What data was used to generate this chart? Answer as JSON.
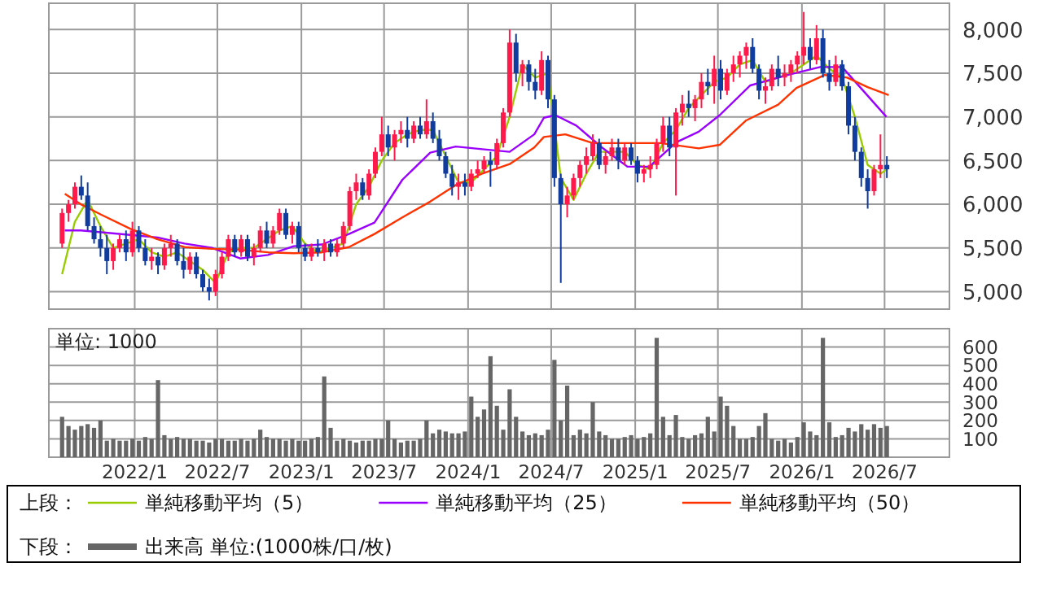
{
  "chart_data": [
    {
      "type": "candlestick",
      "xlim": [
        "2021-06-27",
        "2026-11-20"
      ],
      "xticks": [
        {
          "value": "2022-01-01",
          "label": null
        },
        {
          "value": "2022-07-01",
          "label": null
        },
        {
          "value": "2023-01-01",
          "label": null
        },
        {
          "value": "2023-07-01",
          "label": null
        },
        {
          "value": "2024-01-01",
          "label": null
        },
        {
          "value": "2024-07-01",
          "label": null
        },
        {
          "value": "2025-01-01",
          "label": null
        },
        {
          "value": "2025-07-01",
          "label": null
        },
        {
          "value": "2026-01-01",
          "label": null
        },
        {
          "value": "2026-07-01",
          "label": null
        }
      ],
      "ylim": [
        4800,
        8300
      ],
      "yticks": [
        {
          "value": 5000,
          "label": "5,000"
        },
        {
          "value": 5500,
          "label": "5,500"
        },
        {
          "value": 6000,
          "label": "6,000"
        },
        {
          "value": 6500,
          "label": "6,500"
        },
        {
          "value": 7000,
          "label": "7,000"
        },
        {
          "value": 7500,
          "label": "7,500"
        },
        {
          "value": 8000,
          "label": "8,000"
        }
      ],
      "grid": true,
      "tick_labels": "y",
      "legend": "bottom",
      "legend_title": "上段：",
      "x": [
        "2021-07-26",
        "2021-08-09",
        "2021-08-23",
        "2021-09-06",
        "2021-09-20",
        "2021-10-04",
        "2021-10-18",
        "2021-11-01",
        "2021-11-15",
        "2021-11-29",
        "2021-12-13",
        "2021-12-27",
        "2022-01-10",
        "2022-01-24",
        "2022-02-07",
        "2022-02-21",
        "2022-03-07",
        "2022-03-21",
        "2022-04-04",
        "2022-04-18",
        "2022-05-02",
        "2022-05-16",
        "2022-05-30",
        "2022-06-13",
        "2022-06-27",
        "2022-07-11",
        "2022-07-25",
        "2022-08-08",
        "2022-08-22",
        "2022-09-05",
        "2022-09-19",
        "2022-10-03",
        "2022-10-17",
        "2022-10-31",
        "2022-11-14",
        "2022-11-28",
        "2022-12-12",
        "2022-12-26",
        "2023-01-09",
        "2023-01-23",
        "2023-02-06",
        "2023-02-20",
        "2023-03-06",
        "2023-03-20",
        "2023-04-03",
        "2023-04-17",
        "2023-05-01",
        "2023-05-15",
        "2023-05-29",
        "2023-06-12",
        "2023-06-26",
        "2023-07-10",
        "2023-07-24",
        "2023-08-07",
        "2023-08-21",
        "2023-09-04",
        "2023-09-18",
        "2023-10-02",
        "2023-10-16",
        "2023-10-30",
        "2023-11-13",
        "2023-11-27",
        "2023-12-11",
        "2023-12-25",
        "2024-01-08",
        "2024-01-22",
        "2024-02-05",
        "2024-02-19",
        "2024-03-04",
        "2024-03-18",
        "2024-04-01",
        "2024-04-15",
        "2024-04-29",
        "2024-05-13",
        "2024-05-27",
        "2024-06-10",
        "2024-06-24",
        "2024-07-08",
        "2024-07-22",
        "2024-08-05",
        "2024-08-19",
        "2024-09-02",
        "2024-09-16",
        "2024-09-30",
        "2024-10-14",
        "2024-10-28",
        "2024-11-11",
        "2024-11-25",
        "2024-12-09",
        "2024-12-23",
        "2025-01-06",
        "2025-01-20",
        "2025-02-03",
        "2025-02-17",
        "2025-03-03",
        "2025-03-17",
        "2025-03-31",
        "2025-04-14",
        "2025-04-28",
        "2025-05-12",
        "2025-05-26",
        "2025-06-09",
        "2025-06-23",
        "2025-07-07",
        "2025-07-21",
        "2025-08-04",
        "2025-08-18",
        "2025-09-01",
        "2025-09-15",
        "2025-09-29",
        "2025-10-13",
        "2025-10-27",
        "2025-11-10",
        "2025-11-24",
        "2025-12-08",
        "2025-12-22",
        "2026-01-05",
        "2026-01-19",
        "2026-02-02",
        "2026-02-16",
        "2026-03-02",
        "2026-03-16",
        "2026-03-30",
        "2026-04-13",
        "2026-04-27",
        "2026-05-11",
        "2026-05-25",
        "2026-06-08",
        "2026-06-22",
        "2026-07-06"
      ],
      "ohlc": [
        [
          5550,
          5950,
          5500,
          5900
        ],
        [
          5900,
          6050,
          5800,
          6000
        ],
        [
          6000,
          6250,
          5950,
          6200
        ],
        [
          6200,
          6330,
          6050,
          6100
        ],
        [
          6100,
          6250,
          5700,
          5750
        ],
        [
          5750,
          5850,
          5550,
          5600
        ],
        [
          5600,
          5750,
          5400,
          5500
        ],
        [
          5500,
          5650,
          5200,
          5350
        ],
        [
          5350,
          5550,
          5250,
          5500
        ],
        [
          5500,
          5650,
          5450,
          5600
        ],
        [
          5600,
          5700,
          5350,
          5450
        ],
        [
          5450,
          5800,
          5400,
          5700
        ],
        [
          5700,
          5750,
          5450,
          5500
        ],
        [
          5500,
          5600,
          5300,
          5350
        ],
        [
          5350,
          5500,
          5250,
          5400
        ],
        [
          5400,
          5450,
          5200,
          5300
        ],
        [
          5300,
          5550,
          5250,
          5500
        ],
        [
          5500,
          5650,
          5400,
          5550
        ],
        [
          5550,
          5600,
          5300,
          5350
        ],
        [
          5350,
          5500,
          5150,
          5250
        ],
        [
          5250,
          5450,
          5200,
          5400
        ],
        [
          5400,
          5450,
          5150,
          5200
        ],
        [
          5200,
          5250,
          5000,
          5050
        ],
        [
          5050,
          5150,
          4900,
          5000
        ],
        [
          5000,
          5250,
          4950,
          5200
        ],
        [
          5200,
          5450,
          5150,
          5400
        ],
        [
          5400,
          5650,
          5350,
          5600
        ],
        [
          5600,
          5650,
          5400,
          5450
        ],
        [
          5450,
          5650,
          5400,
          5600
        ],
        [
          5600,
          5650,
          5350,
          5400
        ],
        [
          5400,
          5550,
          5300,
          5500
        ],
        [
          5500,
          5750,
          5450,
          5700
        ],
        [
          5700,
          5800,
          5500,
          5550
        ],
        [
          5550,
          5750,
          5500,
          5700
        ],
        [
          5700,
          5950,
          5650,
          5900
        ],
        [
          5900,
          5950,
          5600,
          5650
        ],
        [
          5650,
          5800,
          5550,
          5750
        ],
        [
          5750,
          5800,
          5450,
          5500
        ],
        [
          5500,
          5550,
          5350,
          5400
        ],
        [
          5400,
          5550,
          5350,
          5500
        ],
        [
          5500,
          5600,
          5400,
          5450
        ],
        [
          5450,
          5600,
          5350,
          5550
        ],
        [
          5550,
          5600,
          5400,
          5450
        ],
        [
          5450,
          5600,
          5400,
          5550
        ],
        [
          5550,
          5800,
          5500,
          5750
        ],
        [
          5750,
          6200,
          5700,
          6150
        ],
        [
          6150,
          6350,
          6050,
          6250
        ],
        [
          6250,
          6300,
          6050,
          6100
        ],
        [
          6100,
          6400,
          6050,
          6350
        ],
        [
          6350,
          6650,
          6300,
          6600
        ],
        [
          6600,
          7000,
          6550,
          6800
        ],
        [
          6800,
          6900,
          6550,
          6650
        ],
        [
          6650,
          6850,
          6500,
          6800
        ],
        [
          6800,
          6950,
          6700,
          6850
        ],
        [
          6850,
          7000,
          6650,
          6750
        ],
        [
          6750,
          6950,
          6700,
          6900
        ],
        [
          6900,
          7000,
          6750,
          6800
        ],
        [
          6800,
          7200,
          6750,
          6950
        ],
        [
          6950,
          7050,
          6700,
          6750
        ],
        [
          6750,
          6850,
          6500,
          6550
        ],
        [
          6550,
          6600,
          6300,
          6350
        ],
        [
          6350,
          6450,
          6100,
          6200
        ],
        [
          6200,
          6350,
          6050,
          6250
        ],
        [
          6250,
          6350,
          6100,
          6200
        ],
        [
          6200,
          6400,
          6150,
          6350
        ],
        [
          6350,
          6500,
          6300,
          6400
        ],
        [
          6400,
          6550,
          6350,
          6500
        ],
        [
          6500,
          6600,
          6200,
          6450
        ],
        [
          6450,
          6750,
          6400,
          6700
        ],
        [
          6700,
          7100,
          6650,
          7050
        ],
        [
          7050,
          8000,
          7000,
          7850
        ],
        [
          7850,
          7950,
          7400,
          7500
        ],
        [
          7500,
          7650,
          7350,
          7600
        ],
        [
          7600,
          7650,
          7300,
          7400
        ],
        [
          7400,
          7550,
          7200,
          7300
        ],
        [
          7300,
          7750,
          7250,
          7650
        ],
        [
          7650,
          7700,
          7100,
          7200
        ],
        [
          7200,
          7250,
          6200,
          6300
        ],
        [
          6300,
          6350,
          5100,
          6000
        ],
        [
          6000,
          6200,
          5850,
          6100
        ],
        [
          6100,
          6350,
          6050,
          6300
        ],
        [
          6300,
          6500,
          6200,
          6450
        ],
        [
          6450,
          6650,
          6350,
          6550
        ],
        [
          6550,
          6800,
          6500,
          6700
        ],
        [
          6700,
          6750,
          6400,
          6450
        ],
        [
          6450,
          6600,
          6350,
          6550
        ],
        [
          6550,
          6750,
          6500,
          6650
        ],
        [
          6650,
          6750,
          6400,
          6500
        ],
        [
          6500,
          6700,
          6450,
          6650
        ],
        [
          6650,
          6700,
          6450,
          6500
        ],
        [
          6500,
          6550,
          6250,
          6350
        ],
        [
          6350,
          6450,
          6250,
          6400
        ],
        [
          6400,
          6550,
          6300,
          6450
        ],
        [
          6450,
          6750,
          6400,
          6700
        ],
        [
          6700,
          7000,
          6600,
          6900
        ],
        [
          6900,
          7000,
          6550,
          6650
        ],
        [
          6650,
          7100,
          6100,
          7050
        ],
        [
          7050,
          7250,
          6900,
          7150
        ],
        [
          7150,
          7300,
          7000,
          7100
        ],
        [
          7100,
          7250,
          6950,
          7200
        ],
        [
          7200,
          7500,
          7100,
          7400
        ],
        [
          7400,
          7550,
          7250,
          7350
        ],
        [
          7350,
          7700,
          7150,
          7550
        ],
        [
          7550,
          7650,
          7200,
          7300
        ],
        [
          7300,
          7550,
          7250,
          7500
        ],
        [
          7500,
          7700,
          7400,
          7600
        ],
        [
          7600,
          7750,
          7450,
          7700
        ],
        [
          7700,
          7850,
          7550,
          7800
        ],
        [
          7800,
          7900,
          7500,
          7550
        ],
        [
          7550,
          7600,
          7200,
          7300
        ],
        [
          7300,
          7450,
          7150,
          7350
        ],
        [
          7350,
          7600,
          7300,
          7550
        ],
        [
          7550,
          7700,
          7350,
          7450
        ],
        [
          7450,
          7600,
          7350,
          7500
        ],
        [
          7500,
          7650,
          7400,
          7600
        ],
        [
          7600,
          7750,
          7500,
          7700
        ],
        [
          7700,
          8200,
          7600,
          7800
        ],
        [
          7800,
          7900,
          7550,
          7650
        ],
        [
          7650,
          8050,
          7600,
          7900
        ],
        [
          7900,
          8000,
          7450,
          7500
        ],
        [
          7500,
          7650,
          7300,
          7400
        ],
        [
          7400,
          7700,
          7350,
          7600
        ],
        [
          7600,
          7650,
          7300,
          7350
        ],
        [
          7350,
          7400,
          6800,
          6900
        ],
        [
          6900,
          7000,
          6500,
          6600
        ],
        [
          6600,
          6650,
          6200,
          6300
        ],
        [
          6300,
          6400,
          5950,
          6150
        ],
        [
          6150,
          6450,
          6100,
          6400
        ],
        [
          6400,
          6800,
          6300,
          6450
        ],
        [
          6450,
          6550,
          6300,
          6400
        ]
      ],
      "colors": [
        "#ff1a4b",
        "#ff1a4b",
        "#ff1a4b",
        "#0f3c9e",
        "#0f3c9e",
        "#0f3c9e",
        "#0f3c9e",
        "#0f3c9e",
        "#ff1a4b",
        "#ff1a4b",
        "#0f3c9e",
        "#ff1a4b",
        "#0f3c9e",
        "#0f3c9e",
        "#ff1a4b",
        "#0f3c9e",
        "#ff1a4b",
        "#ff1a4b",
        "#0f3c9e",
        "#0f3c9e",
        "#ff1a4b",
        "#0f3c9e",
        "#0f3c9e",
        "#0f3c9e",
        "#ff1a4b",
        "#ff1a4b",
        "#ff1a4b",
        "#0f3c9e",
        "#ff1a4b",
        "#0f3c9e",
        "#ff1a4b",
        "#ff1a4b",
        "#0f3c9e",
        "#ff1a4b",
        "#ff1a4b",
        "#0f3c9e",
        "#ff1a4b",
        "#0f3c9e",
        "#0f3c9e",
        "#ff1a4b",
        "#0f3c9e",
        "#ff1a4b",
        "#0f3c9e",
        "#ff1a4b",
        "#ff1a4b",
        "#ff1a4b",
        "#ff1a4b",
        "#0f3c9e",
        "#ff1a4b",
        "#ff1a4b",
        "#ff1a4b",
        "#0f3c9e",
        "#ff1a4b",
        "#ff1a4b",
        "#0f3c9e",
        "#ff1a4b",
        "#0f3c9e",
        "#ff1a4b",
        "#0f3c9e",
        "#0f3c9e",
        "#0f3c9e",
        "#0f3c9e",
        "#ff1a4b",
        "#0f3c9e",
        "#ff1a4b",
        "#ff1a4b",
        "#ff1a4b",
        "#0f3c9e",
        "#ff1a4b",
        "#ff1a4b",
        "#ff1a4b",
        "#0f3c9e",
        "#ff1a4b",
        "#0f3c9e",
        "#0f3c9e",
        "#ff1a4b",
        "#0f3c9e",
        "#0f3c9e",
        "#0f3c9e",
        "#ff1a4b",
        "#ff1a4b",
        "#ff1a4b",
        "#ff1a4b",
        "#ff1a4b",
        "#0f3c9e",
        "#ff1a4b",
        "#ff1a4b",
        "#0f3c9e",
        "#ff1a4b",
        "#0f3c9e",
        "#0f3c9e",
        "#ff1a4b",
        "#ff1a4b",
        "#ff1a4b",
        "#ff1a4b",
        "#0f3c9e",
        "#ff1a4b",
        "#ff1a4b",
        "#0f3c9e",
        "#ff1a4b",
        "#ff1a4b",
        "#0f3c9e",
        "#ff1a4b",
        "#0f3c9e",
        "#ff1a4b",
        "#ff1a4b",
        "#ff1a4b",
        "#ff1a4b",
        "#0f3c9e",
        "#0f3c9e",
        "#ff1a4b",
        "#ff1a4b",
        "#0f3c9e",
        "#ff1a4b",
        "#ff1a4b",
        "#ff1a4b",
        "#ff1a4b",
        "#0f3c9e",
        "#ff1a4b",
        "#0f3c9e",
        "#0f3c9e",
        "#ff1a4b",
        "#0f3c9e",
        "#0f3c9e",
        "#0f3c9e",
        "#0f3c9e",
        "#0f3c9e",
        "#ff1a4b",
        "#ff1a4b",
        "#0f3c9e"
      ],
      "series": [
        {
          "type": "line",
          "name": "単純移動平均（5）",
          "color": "#99cc00",
          "x": [
            "2021-07-26",
            "2021-08-23",
            "2021-09-20",
            "2021-10-18",
            "2021-11-15",
            "2021-12-13",
            "2022-01-10",
            "2022-02-07",
            "2022-03-07",
            "2022-04-04",
            "2022-05-02",
            "2022-05-30",
            "2022-06-27",
            "2022-07-25",
            "2022-08-22",
            "2022-09-19",
            "2022-10-17",
            "2022-11-14",
            "2022-12-12",
            "2023-01-09",
            "2023-02-06",
            "2023-03-06",
            "2023-04-03",
            "2023-05-01",
            "2023-05-29",
            "2023-06-26",
            "2023-07-24",
            "2023-08-21",
            "2023-09-18",
            "2023-10-16",
            "2023-11-13",
            "2023-12-11",
            "2024-01-08",
            "2024-02-05",
            "2024-03-04",
            "2024-04-01",
            "2024-04-29",
            "2024-05-27",
            "2024-06-24",
            "2024-07-22",
            "2024-08-19",
            "2024-09-16",
            "2024-10-14",
            "2024-11-11",
            "2024-12-09",
            "2025-01-06",
            "2025-02-03",
            "2025-03-03",
            "2025-03-31",
            "2025-04-28",
            "2025-05-26",
            "2025-06-23",
            "2025-07-21",
            "2025-08-18",
            "2025-09-15",
            "2025-10-13",
            "2025-11-10",
            "2025-12-08",
            "2026-01-05",
            "2026-02-02",
            "2026-03-02",
            "2026-03-30",
            "2026-04-27",
            "2026-05-25",
            "2026-06-22",
            "2026-07-06"
          ],
          "values": [
            5200,
            5800,
            6050,
            5750,
            5500,
            5550,
            5600,
            5450,
            5400,
            5450,
            5350,
            5250,
            5100,
            5450,
            5500,
            5500,
            5600,
            5700,
            5750,
            5550,
            5450,
            5500,
            5550,
            6000,
            6200,
            6500,
            6700,
            6800,
            6850,
            6850,
            6550,
            6250,
            6250,
            6400,
            6550,
            7000,
            7600,
            7450,
            7500,
            6300,
            6050,
            6350,
            6600,
            6600,
            6600,
            6450,
            6400,
            6700,
            6850,
            7100,
            7250,
            7400,
            7450,
            7600,
            7650,
            7400,
            7450,
            7500,
            7600,
            7700,
            7550,
            7450,
            7000,
            6450,
            6350,
            6400
          ]
        },
        {
          "type": "line",
          "name": "単純移動平均（25）",
          "color": "#9900ff",
          "x": [
            "2021-08-01",
            "2021-09-05",
            "2021-10-20",
            "2021-12-22",
            "2022-02-20",
            "2022-04-20",
            "2022-06-20",
            "2022-08-20",
            "2022-10-20",
            "2022-12-15",
            "2023-02-15",
            "2023-04-15",
            "2023-06-10",
            "2023-08-10",
            "2023-10-10",
            "2023-12-05",
            "2024-02-01",
            "2024-04-01",
            "2024-05-25",
            "2024-06-15",
            "2024-07-10",
            "2024-08-25",
            "2024-10-20",
            "2024-12-15",
            "2025-02-01",
            "2025-04-01",
            "2025-05-20",
            "2025-07-05",
            "2025-09-10",
            "2025-12-01",
            "2026-02-10",
            "2026-03-30",
            "2026-05-15",
            "2026-07-05"
          ],
          "values": [
            5700,
            5700,
            5680,
            5650,
            5620,
            5550,
            5500,
            5380,
            5420,
            5520,
            5540,
            5660,
            5790,
            6280,
            6590,
            6660,
            6630,
            6600,
            6800,
            6990,
            7020,
            6900,
            6650,
            6430,
            6430,
            6710,
            6830,
            7020,
            7360,
            7480,
            7570,
            7570,
            7300,
            7000
          ]
        },
        {
          "type": "line",
          "name": "単純移動平均（50）",
          "color": "#ff3300",
          "x": [
            "2021-08-01",
            "2021-09-05",
            "2021-10-20",
            "2021-12-22",
            "2022-02-20",
            "2022-04-20",
            "2022-06-20",
            "2022-08-20",
            "2022-10-20",
            "2022-12-15",
            "2023-02-15",
            "2023-04-15",
            "2023-06-10",
            "2023-08-10",
            "2023-10-10",
            "2023-12-05",
            "2024-02-01",
            "2024-04-01",
            "2024-05-25",
            "2024-06-15",
            "2024-08-01",
            "2024-09-30",
            "2024-12-15",
            "2025-02-25",
            "2025-05-20",
            "2025-07-05",
            "2025-09-01",
            "2025-11-10",
            "2025-12-20",
            "2026-02-20",
            "2026-04-10",
            "2026-05-25",
            "2026-07-10"
          ],
          "values": [
            6120,
            6000,
            5880,
            5720,
            5600,
            5510,
            5490,
            5480,
            5450,
            5440,
            5450,
            5510,
            5660,
            5850,
            6030,
            6220,
            6350,
            6460,
            6650,
            6770,
            6800,
            6700,
            6700,
            6700,
            6640,
            6680,
            6960,
            7140,
            7330,
            7480,
            7450,
            7340,
            7250
          ]
        }
      ]
    },
    {
      "type": "bar",
      "xlim": [
        "2021-06-27",
        "2026-11-20"
      ],
      "xticks": [
        {
          "value": "2022-01-01",
          "label": "2022/1"
        },
        {
          "value": "2022-07-01",
          "label": "2022/7"
        },
        {
          "value": "2023-01-01",
          "label": "2023/1"
        },
        {
          "value": "2023-07-01",
          "label": "2023/7"
        },
        {
          "value": "2024-01-01",
          "label": "2024/1"
        },
        {
          "value": "2024-07-01",
          "label": "2024/7"
        },
        {
          "value": "2025-01-01",
          "label": "2025/1"
        },
        {
          "value": "2025-07-01",
          "label": "2025/7"
        },
        {
          "value": "2026-01-01",
          "label": "2026/1"
        },
        {
          "value": "2026-07-01",
          "label": "2026/7"
        }
      ],
      "ylim": [
        0,
        700
      ],
      "yticks": [
        100,
        200,
        300,
        400,
        500,
        600
      ],
      "grid": true,
      "legend": "bottom",
      "legend_title": "下段：",
      "annotations": [
        "単位: 1000"
      ],
      "x": [
        "2021-07-26",
        "2021-08-09",
        "2021-08-23",
        "2021-09-06",
        "2021-09-20",
        "2021-10-04",
        "2021-10-18",
        "2021-11-01",
        "2021-11-15",
        "2021-11-29",
        "2021-12-13",
        "2021-12-27",
        "2022-01-10",
        "2022-01-24",
        "2022-02-07",
        "2022-02-21",
        "2022-03-07",
        "2022-03-21",
        "2022-04-04",
        "2022-04-18",
        "2022-05-02",
        "2022-05-16",
        "2022-05-30",
        "2022-06-13",
        "2022-06-27",
        "2022-07-11",
        "2022-07-25",
        "2022-08-08",
        "2022-08-22",
        "2022-09-05",
        "2022-09-19",
        "2022-10-03",
        "2022-10-17",
        "2022-10-31",
        "2022-11-14",
        "2022-11-28",
        "2022-12-12",
        "2022-12-26",
        "2023-01-09",
        "2023-01-23",
        "2023-02-06",
        "2023-02-20",
        "2023-03-06",
        "2023-03-20",
        "2023-04-03",
        "2023-04-17",
        "2023-05-01",
        "2023-05-15",
        "2023-05-29",
        "2023-06-12",
        "2023-06-26",
        "2023-07-10",
        "2023-07-24",
        "2023-08-07",
        "2023-08-21",
        "2023-09-04",
        "2023-09-18",
        "2023-10-02",
        "2023-10-16",
        "2023-10-30",
        "2023-11-13",
        "2023-11-27",
        "2023-12-11",
        "2023-12-25",
        "2024-01-08",
        "2024-01-22",
        "2024-02-05",
        "2024-02-19",
        "2024-03-04",
        "2024-03-18",
        "2024-04-01",
        "2024-04-15",
        "2024-04-29",
        "2024-05-13",
        "2024-05-27",
        "2024-06-10",
        "2024-06-24",
        "2024-07-08",
        "2024-07-22",
        "2024-08-05",
        "2024-08-19",
        "2024-09-02",
        "2024-09-16",
        "2024-09-30",
        "2024-10-14",
        "2024-10-28",
        "2024-11-11",
        "2024-11-25",
        "2024-12-09",
        "2024-12-23",
        "2025-01-06",
        "2025-01-20",
        "2025-02-03",
        "2025-02-17",
        "2025-03-03",
        "2025-03-17",
        "2025-03-31",
        "2025-04-14",
        "2025-04-28",
        "2025-05-12",
        "2025-05-26",
        "2025-06-09",
        "2025-06-23",
        "2025-07-07",
        "2025-07-21",
        "2025-08-04",
        "2025-08-18",
        "2025-09-01",
        "2025-09-15",
        "2025-09-29",
        "2025-10-13",
        "2025-10-27",
        "2025-11-10",
        "2025-11-24",
        "2025-12-08",
        "2025-12-22",
        "2026-01-05",
        "2026-01-19",
        "2026-02-02",
        "2026-02-16",
        "2026-03-02",
        "2026-03-16",
        "2026-03-30",
        "2026-04-13",
        "2026-04-27",
        "2026-05-11",
        "2026-05-25",
        "2026-06-08",
        "2026-06-22",
        "2026-07-06"
      ],
      "series": [
        {
          "name": "出来高 単位:(1000株/口/枚)",
          "color": "#666666",
          "values": [
            220,
            170,
            150,
            170,
            180,
            160,
            200,
            90,
            100,
            90,
            90,
            100,
            90,
            110,
            100,
            420,
            120,
            100,
            110,
            100,
            100,
            90,
            90,
            80,
            100,
            100,
            90,
            90,
            100,
            90,
            100,
            150,
            110,
            100,
            100,
            90,
            100,
            90,
            90,
            100,
            110,
            440,
            160,
            90,
            100,
            90,
            80,
            90,
            90,
            100,
            100,
            200,
            100,
            80,
            90,
            90,
            100,
            200,
            130,
            150,
            140,
            130,
            130,
            140,
            330,
            220,
            260,
            550,
            280,
            150,
            370,
            220,
            140,
            120,
            130,
            120,
            150,
            530,
            200,
            390,
            120,
            150,
            130,
            300,
            140,
            120,
            100,
            100,
            110,
            120,
            100,
            110,
            130,
            650,
            220,
            120,
            230,
            110,
            100,
            120,
            130,
            220,
            140,
            330,
            280,
            170,
            100,
            100,
            110,
            170,
            240,
            100,
            90,
            100,
            80,
            110,
            190,
            140,
            120,
            650,
            190,
            110,
            120,
            160,
            140,
            180,
            150,
            180,
            160,
            170
          ]
        }
      ]
    }
  ]
}
